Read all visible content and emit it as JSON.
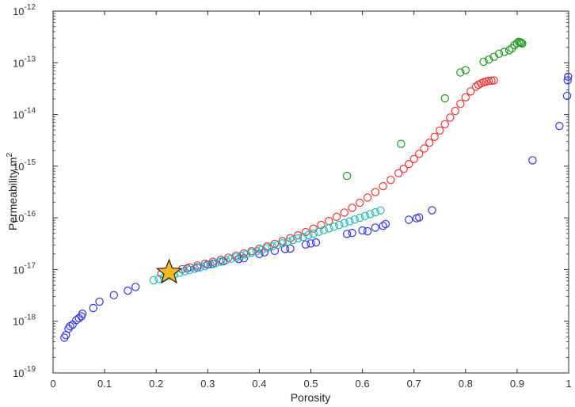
{
  "chart_data": {
    "type": "scatter",
    "xlabel": "Porosity",
    "ylabel_base": "Permeability m",
    "ylabel_exponent": "2",
    "xlim": [
      0,
      1
    ],
    "ylim": [
      1e-19,
      1e-12
    ],
    "yscale": "log",
    "grid": false,
    "x_ticks": [
      "0",
      "0.1",
      "0.2",
      "0.3",
      "0.4",
      "0.5",
      "0.6",
      "0.7",
      "0.8",
      "0.9",
      "1"
    ],
    "y_ticks": [
      {
        "base": "10",
        "exp": "-19"
      },
      {
        "base": "10",
        "exp": "-18"
      },
      {
        "base": "10",
        "exp": "-17"
      },
      {
        "base": "10",
        "exp": "-16"
      },
      {
        "base": "10",
        "exp": "-15"
      },
      {
        "base": "10",
        "exp": "-14"
      },
      {
        "base": "10",
        "exp": "-13"
      },
      {
        "base": "10",
        "exp": "-12"
      }
    ],
    "series": [
      {
        "color": "#3333ee",
        "marker": "circle-open",
        "x": [
          0.022,
          0.025,
          0.03,
          0.033,
          0.038,
          0.045,
          0.05,
          0.055,
          0.057,
          0.078,
          0.09,
          0.118,
          0.145,
          0.16,
          0.26,
          0.28,
          0.3,
          0.31,
          0.33,
          0.36,
          0.37,
          0.4,
          0.41,
          0.43,
          0.45,
          0.46,
          0.49,
          0.5,
          0.51,
          0.57,
          0.58,
          0.6,
          0.61,
          0.625,
          0.64,
          0.645,
          0.69,
          0.705,
          0.71,
          0.735,
          0.93,
          0.982,
          0.997,
          0.998,
          0.999
        ],
        "y": [
          4.8e-19,
          5.4e-19,
          7.2e-19,
          8e-19,
          8.6e-19,
          1.05e-18,
          1.15e-18,
          1.25e-18,
          1.4e-18,
          1.8e-18,
          2.4e-18,
          3.2e-18,
          3.9e-18,
          4.6e-18,
          1.05e-17,
          1.1e-17,
          1.25e-17,
          1.3e-17,
          1.45e-17,
          1.6e-17,
          1.65e-17,
          2e-17,
          2.15e-17,
          2.3e-17,
          2.5e-17,
          2.55e-17,
          3.05e-17,
          3.2e-17,
          3.35e-17,
          4.9e-17,
          5.1e-17,
          5.7e-17,
          5.5e-17,
          6.5e-17,
          7e-17,
          7.6e-17,
          9.2e-17,
          9.8e-17,
          1.02e-16,
          1.4e-16,
          1.3e-15,
          6e-15,
          2.3e-14,
          4.6e-14,
          5.4e-14
        ]
      },
      {
        "color": "#ee3333",
        "marker": "circle-open",
        "x": [
          0.21,
          0.23,
          0.25,
          0.265,
          0.28,
          0.295,
          0.31,
          0.325,
          0.34,
          0.355,
          0.37,
          0.385,
          0.4,
          0.415,
          0.43,
          0.445,
          0.46,
          0.475,
          0.49,
          0.505,
          0.52,
          0.535,
          0.55,
          0.565,
          0.58,
          0.595,
          0.61,
          0.625,
          0.64,
          0.655,
          0.67,
          0.68,
          0.69,
          0.7,
          0.71,
          0.72,
          0.73,
          0.74,
          0.75,
          0.76,
          0.77,
          0.78,
          0.79,
          0.8,
          0.81,
          0.82,
          0.825,
          0.83,
          0.835,
          0.84,
          0.845,
          0.85,
          0.855
        ],
        "y": [
          8.3e-18,
          9.3e-18,
          1.02e-17,
          1.1e-17,
          1.2e-17,
          1.3e-17,
          1.42e-17,
          1.55e-17,
          1.7e-17,
          1.86e-17,
          2.05e-17,
          2.27e-17,
          2.52e-17,
          2.8e-17,
          3.15e-17,
          3.55e-17,
          4.05e-17,
          4.6e-17,
          5.3e-17,
          6.2e-17,
          7.3e-17,
          8.7e-17,
          1.05e-16,
          1.27e-16,
          1.57e-16,
          1.96e-16,
          2.47e-16,
          3.15e-16,
          4.1e-16,
          5.4e-16,
          7.3e-16,
          8.9e-16,
          1.1e-15,
          1.37e-15,
          1.73e-15,
          2.2e-15,
          2.85e-15,
          3.7e-15,
          4.9e-15,
          6.5e-15,
          8.7e-15,
          1.17e-14,
          1.6e-14,
          2.15e-14,
          2.8e-14,
          3.45e-14,
          3.75e-14,
          4e-14,
          4.2e-14,
          4.35e-14,
          4.45e-14,
          4.5e-14,
          4.55e-14
        ]
      },
      {
        "color": "#22bbbb",
        "marker": "circle-open",
        "x": [
          0.195,
          0.205,
          0.215,
          0.225,
          0.235,
          0.245,
          0.255,
          0.265,
          0.275,
          0.285,
          0.295,
          0.305,
          0.315,
          0.325,
          0.335,
          0.345,
          0.355,
          0.365,
          0.375,
          0.385,
          0.395,
          0.405,
          0.415,
          0.425,
          0.435,
          0.445,
          0.455,
          0.465,
          0.475,
          0.485,
          0.495,
          0.505,
          0.515,
          0.525,
          0.535,
          0.545,
          0.555,
          0.565,
          0.575,
          0.585,
          0.595,
          0.605,
          0.615,
          0.625,
          0.635
        ],
        "y": [
          6.2e-18,
          6.6e-18,
          7e-18,
          7.5e-18,
          8e-18,
          8.6e-18,
          9.2e-18,
          9.8e-18,
          1.04e-17,
          1.1e-17,
          1.17e-17,
          1.25e-17,
          1.33e-17,
          1.42e-17,
          1.52e-17,
          1.62e-17,
          1.73e-17,
          1.85e-17,
          1.98e-17,
          2.12e-17,
          2.27e-17,
          2.43e-17,
          2.6e-17,
          2.8e-17,
          3e-17,
          3.22e-17,
          3.46e-17,
          3.72e-17,
          4e-17,
          4.3e-17,
          4.63e-17,
          4.98e-17,
          5.37e-17,
          5.8e-17,
          6.26e-17,
          6.76e-17,
          7.3e-17,
          7.9e-17,
          8.56e-17,
          9.27e-17,
          1e-16,
          1.09e-16,
          1.18e-16,
          1.28e-16,
          1.39e-16
        ]
      },
      {
        "color": "#229922",
        "marker": "circle-open",
        "x": [
          0.57,
          0.675,
          0.76,
          0.79,
          0.8,
          0.835,
          0.845,
          0.855,
          0.865,
          0.875,
          0.885,
          0.89,
          0.895,
          0.9,
          0.903,
          0.906,
          0.908,
          0.91
        ],
        "y": [
          6.5e-16,
          2.7e-15,
          2.05e-14,
          6.5e-14,
          7.2e-14,
          1.05e-13,
          1.15e-13,
          1.3e-13,
          1.5e-13,
          1.62e-13,
          1.75e-13,
          1.9e-13,
          2.2e-13,
          2.4e-13,
          2.55e-13,
          2.5e-13,
          2.45e-13,
          2.35e-13
        ]
      }
    ],
    "annotations": [
      {
        "type": "star",
        "x": 0.225,
        "y": 8.8e-18,
        "color": "#f6b81c",
        "stroke": "#222222"
      }
    ]
  }
}
